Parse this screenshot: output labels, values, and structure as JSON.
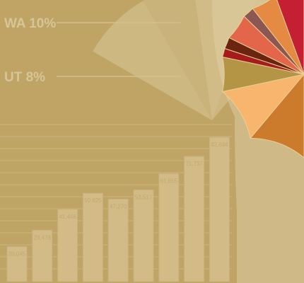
{
  "colors": {
    "background": "#bfa466",
    "panel": "#cfb987",
    "bar_fill": "#d2bb86",
    "bar_outline": "#c9b07b",
    "grid_line": "#cbb47f",
    "callout_text": "#d8c596",
    "pie_colors": [
      "#cc7a2c",
      "#f7b56d",
      "#b49445",
      "#a61c1c",
      "#6a2410",
      "#e4664a",
      "#8c5752",
      "#e58a43",
      "#c51f34"
    ]
  },
  "chart_data": [
    {
      "type": "bar",
      "title": "",
      "xlabel": "",
      "ylabel": "",
      "categories": [
        "",
        "",
        "",
        "",
        "",
        "",
        "",
        "",
        ""
      ],
      "values": [
        20045,
        29478,
        41446,
        50625,
        47270,
        52517,
        61855,
        71737,
        82634
      ],
      "value_labels": [
        "20,045",
        "29,478",
        "41,446",
        "50,625",
        "47,270",
        "52,517",
        "61,855",
        "71,737",
        "82,634"
      ],
      "ylim": [
        0,
        90000
      ],
      "grid": true
    },
    {
      "type": "pie",
      "title": "",
      "callouts": [
        {
          "label": "WA 10%",
          "value": 10
        },
        {
          "label": "UT 8%",
          "value": 8
        }
      ],
      "slices_visible_degrees": [
        {
          "start": -90,
          "end": -50
        },
        {
          "start": -50,
          "end": -12
        },
        {
          "start": -12,
          "end": 12
        },
        {
          "start": 12,
          "end": 18
        },
        {
          "start": 18,
          "end": 26
        },
        {
          "start": 26,
          "end": 44
        },
        {
          "start": 44,
          "end": 52
        },
        {
          "start": 52,
          "end": 70
        },
        {
          "start": 70,
          "end": 90
        }
      ],
      "grid": false
    }
  ]
}
